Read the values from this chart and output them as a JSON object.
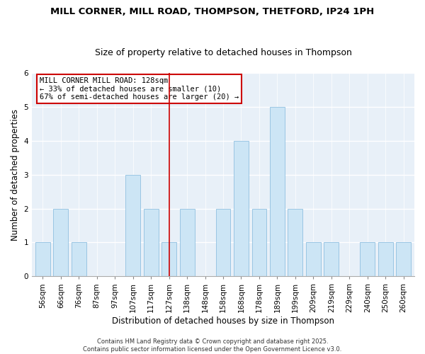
{
  "title": "MILL CORNER, MILL ROAD, THOMPSON, THETFORD, IP24 1PH",
  "subtitle": "Size of property relative to detached houses in Thompson",
  "xlabel": "Distribution of detached houses by size in Thompson",
  "ylabel": "Number of detached properties",
  "bin_labels": [
    "56sqm",
    "66sqm",
    "76sqm",
    "87sqm",
    "97sqm",
    "107sqm",
    "117sqm",
    "127sqm",
    "138sqm",
    "148sqm",
    "158sqm",
    "168sqm",
    "178sqm",
    "189sqm",
    "199sqm",
    "209sqm",
    "219sqm",
    "229sqm",
    "240sqm",
    "250sqm",
    "260sqm"
  ],
  "bin_positions": [
    0,
    1,
    2,
    3,
    4,
    5,
    6,
    7,
    8,
    9,
    10,
    11,
    12,
    13,
    14,
    15,
    16,
    17,
    18,
    19,
    20
  ],
  "counts": [
    1,
    2,
    1,
    0,
    0,
    3,
    2,
    1,
    2,
    0,
    2,
    4,
    2,
    5,
    2,
    1,
    1,
    0,
    1,
    1,
    1
  ],
  "bar_color": "#cce5f5",
  "bar_edgecolor": "#90c0e0",
  "vline_pos": 7,
  "vline_color": "#cc0000",
  "ylim": [
    0,
    6
  ],
  "yticks": [
    0,
    1,
    2,
    3,
    4,
    5,
    6
  ],
  "annotation_title": "MILL CORNER MILL ROAD: 128sqm",
  "annotation_line1": "← 33% of detached houses are smaller (10)",
  "annotation_line2": "67% of semi-detached houses are larger (20) →",
  "annotation_box_facecolor": "#ffffff",
  "annotation_box_edgecolor": "#cc0000",
  "footer1": "Contains HM Land Registry data © Crown copyright and database right 2025.",
  "footer2": "Contains public sector information licensed under the Open Government Licence v3.0.",
  "bg_color": "#ffffff",
  "plot_bg_color": "#e8f0f8",
  "grid_color": "#ffffff",
  "title_fontsize": 9.5,
  "subtitle_fontsize": 9,
  "axis_label_fontsize": 8.5,
  "tick_fontsize": 7.5,
  "annotation_fontsize": 7.5,
  "footer_fontsize": 6
}
